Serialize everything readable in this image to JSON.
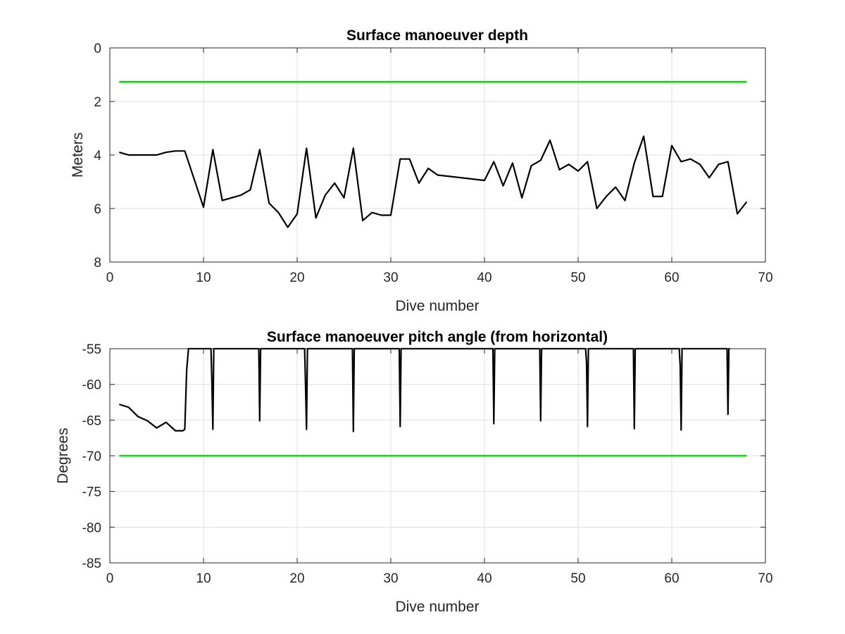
{
  "chart_data": [
    {
      "type": "line",
      "title": "Surface manoeuver depth",
      "xlabel": "Dive number",
      "ylabel": "Meters",
      "xlim": [
        0,
        70
      ],
      "ylim": [
        0,
        8
      ],
      "y_reversed": true,
      "xticks": [
        "0",
        "10",
        "20",
        "30",
        "40",
        "50",
        "60",
        "70"
      ],
      "yticks": [
        "0",
        "2",
        "4",
        "6",
        "8"
      ],
      "grid": true,
      "series": [
        {
          "color": "#000000",
          "x": [
            1,
            2,
            3,
            4,
            5,
            6,
            7,
            8,
            9,
            10,
            11,
            12,
            13,
            14,
            15,
            16,
            17,
            18,
            19,
            20,
            21,
            22,
            23,
            24,
            25,
            26,
            27,
            28,
            29,
            30,
            31,
            32,
            33,
            34,
            35,
            40,
            41,
            42,
            43,
            44,
            45,
            46,
            47,
            48,
            49,
            50,
            51,
            52,
            53,
            54,
            55,
            56,
            57,
            58,
            59,
            60,
            61,
            62,
            63,
            64,
            65,
            66,
            67,
            68
          ],
          "y": [
            3.9,
            4.0,
            4.0,
            4.0,
            4.0,
            3.9,
            3.85,
            3.85,
            4.9,
            5.95,
            3.8,
            5.7,
            5.6,
            5.5,
            5.3,
            3.8,
            5.8,
            6.15,
            6.7,
            6.2,
            3.75,
            6.35,
            5.5,
            5.05,
            5.6,
            3.75,
            6.45,
            6.15,
            6.25,
            6.25,
            4.15,
            4.15,
            5.05,
            4.5,
            4.75,
            4.95,
            4.25,
            5.15,
            4.3,
            5.6,
            4.4,
            4.2,
            3.45,
            4.55,
            4.35,
            4.6,
            4.25,
            6.0,
            5.55,
            5.2,
            5.7,
            4.3,
            3.3,
            5.55,
            5.55,
            3.65,
            4.25,
            4.15,
            4.35,
            4.85,
            4.35,
            4.25,
            6.2,
            5.75
          ]
        },
        {
          "color": "#00dd00",
          "x": [
            1,
            68
          ],
          "y": [
            1.27,
            1.27
          ]
        }
      ]
    },
    {
      "type": "line",
      "title": "Surface manoeuver pitch angle (from horizontal)",
      "xlabel": "Dive number",
      "ylabel": "Degrees",
      "xlim": [
        0,
        70
      ],
      "ylim": [
        -85,
        -55
      ],
      "xticks": [
        "0",
        "10",
        "20",
        "30",
        "40",
        "50",
        "60",
        "70"
      ],
      "yticks": [
        "-55",
        "-60",
        "-65",
        "-70",
        "-75",
        "-80",
        "-85"
      ],
      "grid": true,
      "series": [
        {
          "color": "#000000",
          "x": [
            1,
            2,
            3,
            4,
            5,
            6,
            7,
            7.8,
            8.0,
            8.2,
            8.4,
            10.8,
            10.9,
            11.0,
            11.1,
            11.2,
            15.9,
            16.0,
            16.1,
            16.2,
            20.8,
            20.9,
            21.0,
            21.1,
            21.2,
            25.9,
            26.0,
            26.1,
            26.2,
            30.9,
            31.0,
            31.1,
            31.2,
            40.9,
            41.0,
            41.1,
            41.2,
            45.9,
            46.0,
            46.1,
            46.2,
            50.8,
            50.9,
            51.0,
            51.1,
            51.2,
            55.9,
            56.0,
            56.1,
            56.2,
            60.8,
            60.9,
            61.0,
            61.1,
            61.2,
            65.9,
            66.0,
            66.1,
            66.2
          ],
          "y": [
            -62.8,
            -63.2,
            -64.5,
            -65.1,
            -66.1,
            -65.3,
            -66.5,
            -66.5,
            -66.3,
            -58.0,
            -55.0,
            -55.0,
            -60.0,
            -66.3,
            -55.0,
            -55.0,
            -55.0,
            -65.1,
            -55.0,
            -55.0,
            -55.0,
            -60.5,
            -66.3,
            -55.0,
            -55.0,
            -55.0,
            -66.6,
            -55.0,
            -55.0,
            -55.0,
            -65.9,
            -55.0,
            -55.0,
            -55.0,
            -65.5,
            -55.0,
            -55.0,
            -55.0,
            -65.1,
            -55.0,
            -55.0,
            -55.0,
            -57.0,
            -65.9,
            -55.0,
            -55.0,
            -55.0,
            -66.2,
            -55.0,
            -55.0,
            -55.0,
            -57.5,
            -66.4,
            -55.0,
            -55.0,
            -55.0,
            -64.2,
            -55.0,
            -55.0
          ]
        },
        {
          "color": "#00dd00",
          "x": [
            1,
            68
          ],
          "y": [
            -70,
            -70
          ]
        }
      ]
    }
  ]
}
